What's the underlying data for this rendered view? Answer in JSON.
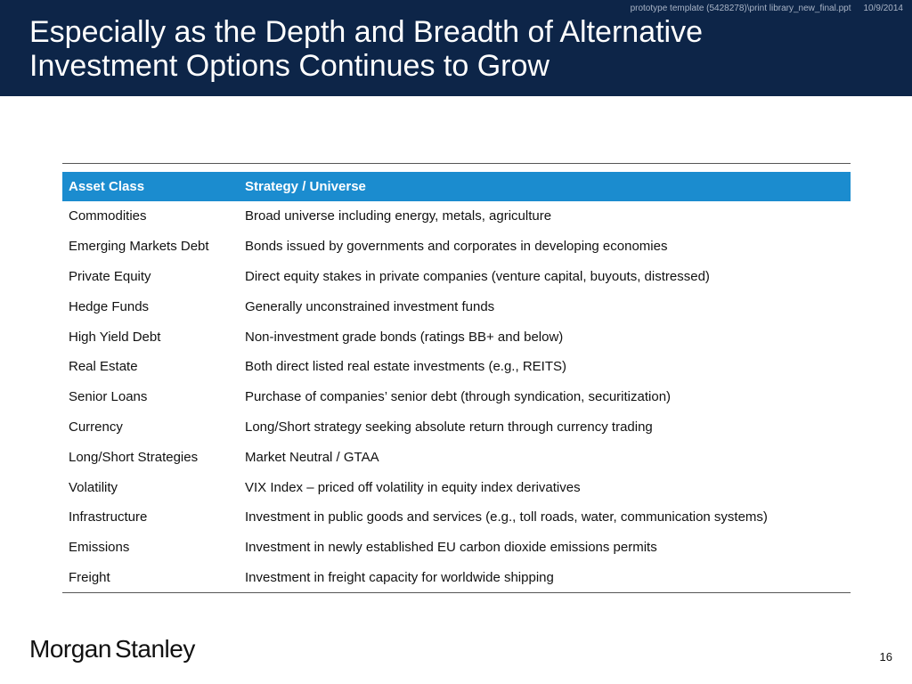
{
  "header": {
    "title": "Especially as the Depth and Breadth of Alternative\nInvestment Options Continues to Grow",
    "file_path": "prototype template (5428278)\\print library_new_final.ppt",
    "date": "10/9/2014"
  },
  "table": {
    "headers": [
      "Asset Class",
      "Strategy / Universe"
    ],
    "rows": [
      [
        "Commodities",
        "Broad universe including energy, metals, agriculture"
      ],
      [
        "Emerging Markets Debt",
        "Bonds issued by governments and corporates in developing economies"
      ],
      [
        "Private Equity",
        "Direct equity stakes in private companies (venture capital, buyouts, distressed)"
      ],
      [
        "Hedge Funds",
        "Generally unconstrained investment funds"
      ],
      [
        "High Yield Debt",
        "Non-investment grade bonds (ratings BB+ and below)"
      ],
      [
        "Real Estate",
        "Both direct listed real estate investments (e.g., REITS)"
      ],
      [
        "Senior Loans",
        "Purchase of companies’ senior debt (through syndication, securitization)"
      ],
      [
        "Currency",
        "Long/Short strategy seeking absolute return through currency trading"
      ],
      [
        "Long/Short Strategies",
        "Market Neutral / GTAA"
      ],
      [
        "Volatility",
        "VIX Index – priced off volatility in equity index derivatives"
      ],
      [
        "Infrastructure",
        "Investment in public goods and services (e.g., toll roads, water, communication systems)"
      ],
      [
        "Emissions",
        "Investment in newly established EU carbon dioxide emissions permits"
      ],
      [
        "Freight",
        "Investment in freight capacity for worldwide shipping"
      ]
    ]
  },
  "footer": {
    "logo_word1": "Morgan",
    "logo_word2": "Stanley",
    "page_number": "16"
  },
  "colors": {
    "header_bg": "#0d2548",
    "table_header_bg": "#1b8ccf"
  }
}
